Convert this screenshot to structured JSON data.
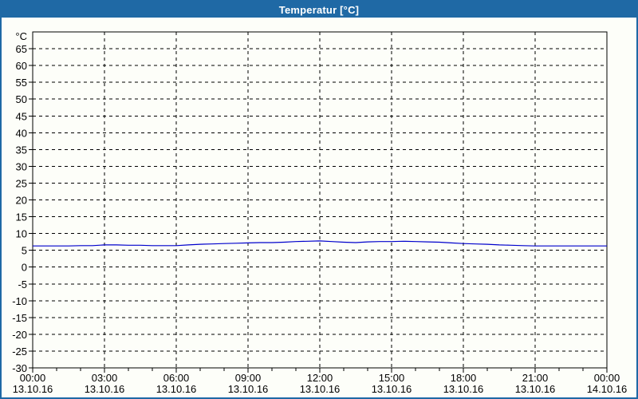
{
  "window": {
    "title": "Temperatur [°C]",
    "titlebar_color": "#1F69A5",
    "border_color": "#1F69A5",
    "background_color": "#FDFEF9"
  },
  "chart_data": {
    "type": "line",
    "title": "Temperatur [°C]",
    "y_unit_label": "°C",
    "ylim": [
      -30,
      70
    ],
    "y_tick_step": 5,
    "y_ticks": [
      -30,
      -25,
      -20,
      -15,
      -10,
      -5,
      0,
      5,
      10,
      15,
      20,
      25,
      30,
      35,
      40,
      45,
      50,
      55,
      60,
      65
    ],
    "x_hours_range": [
      0,
      24
    ],
    "x_minor_tick_every_hours": 1,
    "x_major_ticks": [
      {
        "hour": 0,
        "time": "00:00",
        "date": "13.10.16"
      },
      {
        "hour": 3,
        "time": "03:00",
        "date": "13.10.16"
      },
      {
        "hour": 6,
        "time": "06:00",
        "date": "13.10.16"
      },
      {
        "hour": 9,
        "time": "09:00",
        "date": "13.10.16"
      },
      {
        "hour": 12,
        "time": "12:00",
        "date": "13.10.16"
      },
      {
        "hour": 15,
        "time": "15:00",
        "date": "13.10.16"
      },
      {
        "hour": 18,
        "time": "18:00",
        "date": "13.10.16"
      },
      {
        "hour": 21,
        "time": "21:00",
        "date": "13.10.16"
      },
      {
        "hour": 24,
        "time": "00:00",
        "date": "14.10.16"
      }
    ],
    "grid": "dashed-black",
    "legend": "none",
    "series": [
      {
        "name": "Temperatur",
        "color": "#0000CC",
        "x_hours": [
          0,
          0.5,
          1,
          1.5,
          2,
          2.5,
          3,
          3.5,
          4,
          4.5,
          5,
          5.5,
          6,
          6.5,
          7,
          7.5,
          8,
          8.5,
          9,
          9.5,
          10,
          10.5,
          11,
          11.5,
          12,
          12.5,
          13,
          13.5,
          14,
          14.5,
          15,
          15.5,
          16,
          16.5,
          17,
          17.5,
          18,
          18.5,
          19,
          19.5,
          20,
          20.5,
          21,
          21.5,
          22,
          22.5,
          23,
          23.5,
          24
        ],
        "values": [
          6.3,
          6.3,
          6.3,
          6.3,
          6.4,
          6.4,
          6.6,
          6.6,
          6.5,
          6.5,
          6.4,
          6.4,
          6.4,
          6.6,
          6.8,
          6.9,
          7.0,
          7.1,
          7.2,
          7.3,
          7.3,
          7.4,
          7.6,
          7.7,
          7.8,
          7.6,
          7.4,
          7.3,
          7.5,
          7.6,
          7.6,
          7.7,
          7.6,
          7.5,
          7.4,
          7.2,
          7.0,
          6.9,
          6.8,
          6.6,
          6.5,
          6.4,
          6.3,
          6.3,
          6.3,
          6.3,
          6.3,
          6.3,
          6.3
        ]
      }
    ]
  }
}
